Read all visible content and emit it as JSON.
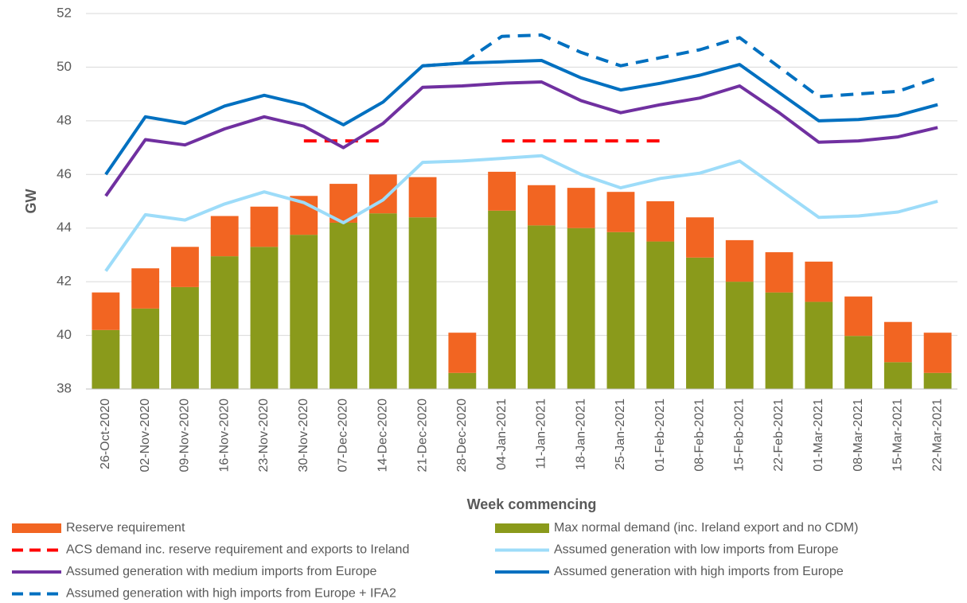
{
  "chart_data": {
    "type": "combo",
    "y_label": "GW",
    "x_label": "Week commencing",
    "categories": [
      "26-Oct-2020",
      "02-Nov-2020",
      "09-Nov-2020",
      "16-Nov-2020",
      "23-Nov-2020",
      "30-Nov-2020",
      "07-Dec-2020",
      "14-Dec-2020",
      "21-Dec-2020",
      "28-Dec-2020",
      "04-Jan-2021",
      "11-Jan-2021",
      "18-Jan-2021",
      "25-Jan-2021",
      "01-Feb-2021",
      "08-Feb-2021",
      "15-Feb-2021",
      "22-Feb-2021",
      "01-Mar-2021",
      "08-Mar-2021",
      "15-Mar-2021",
      "22-Mar-2021"
    ],
    "ylim": [
      38,
      52
    ],
    "yticks": [
      38,
      40,
      42,
      44,
      46,
      48,
      50,
      52
    ],
    "grid": true,
    "series": [
      {
        "name": "Reserve requirement",
        "type": "bar",
        "stack_on": 1,
        "color": "#f26522",
        "values": [
          1.4,
          1.5,
          1.5,
          1.5,
          1.5,
          1.45,
          1.45,
          1.45,
          1.5,
          1.5,
          1.45,
          1.5,
          1.5,
          1.5,
          1.5,
          1.5,
          1.55,
          1.5,
          1.5,
          1.47,
          1.5,
          1.5
        ]
      },
      {
        "name": "Max normal demand (inc. Ireland export and no CDM)",
        "type": "bar",
        "color": "#8a9a1b",
        "values": [
          40.2,
          41.0,
          41.8,
          42.95,
          43.3,
          43.75,
          44.2,
          44.55,
          44.4,
          38.6,
          44.65,
          44.1,
          44.0,
          43.85,
          43.5,
          42.9,
          42.0,
          41.6,
          41.25,
          39.98,
          39.0,
          38.6
        ]
      },
      {
        "name": "ACS demand inc. reserve requirement and exports to Ireland",
        "type": "line",
        "dash": true,
        "color": "#ff0000",
        "values": [
          null,
          null,
          null,
          null,
          null,
          47.25,
          47.25,
          47.25,
          null,
          null,
          47.25,
          47.25,
          47.25,
          47.25,
          47.25,
          null,
          null,
          null,
          null,
          null,
          null,
          null
        ]
      },
      {
        "name": "Assumed generation with low imports from Europe",
        "type": "line",
        "color": "#9ddcf9",
        "values": [
          42.4,
          44.5,
          44.3,
          44.9,
          45.35,
          44.95,
          44.2,
          45.05,
          46.45,
          46.5,
          46.6,
          46.7,
          46.0,
          45.5,
          45.85,
          46.05,
          46.5,
          45.45,
          44.4,
          44.45,
          44.6,
          45.0
        ]
      },
      {
        "name": "Assumed generation with medium imports from Europe",
        "type": "line",
        "color": "#7030a0",
        "values": [
          45.2,
          47.3,
          47.1,
          47.7,
          48.15,
          47.8,
          47.0,
          47.9,
          49.25,
          49.3,
          49.4,
          49.45,
          48.75,
          48.3,
          48.6,
          48.85,
          49.3,
          48.3,
          47.2,
          47.25,
          47.4,
          47.75
        ]
      },
      {
        "name": "Assumed generation with high imports from Europe",
        "type": "line",
        "color": "#0070c0",
        "values": [
          46.0,
          48.15,
          47.9,
          48.55,
          48.95,
          48.6,
          47.85,
          48.7,
          50.05,
          50.15,
          50.2,
          50.25,
          49.6,
          49.15,
          49.4,
          49.7,
          50.1,
          49.05,
          48.0,
          48.05,
          48.2,
          48.6
        ]
      },
      {
        "name": "Assumed generation with high imports from Europe + IFA2",
        "type": "line",
        "dash": true,
        "color": "#0070c0",
        "values": [
          null,
          null,
          null,
          null,
          null,
          null,
          null,
          null,
          50.05,
          50.15,
          51.15,
          51.2,
          50.55,
          50.05,
          50.35,
          50.65,
          51.1,
          50.0,
          48.9,
          49.0,
          49.1,
          49.6
        ]
      }
    ]
  }
}
